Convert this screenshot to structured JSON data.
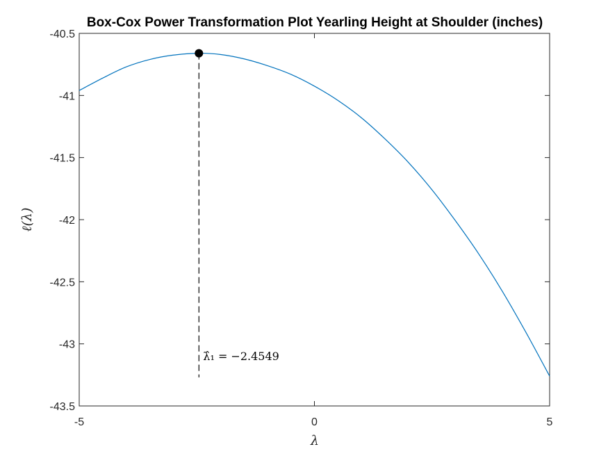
{
  "chart_data": {
    "type": "line",
    "title": "Box-Cox Power Transformation Plot Yearling Height at Shoulder (inches)",
    "xlabel": "λ",
    "ylabel": "ℓ(λ)",
    "xlim": [
      -5,
      5
    ],
    "ylim": [
      -43.5,
      -40.5
    ],
    "x_ticks": [
      -5,
      0,
      5
    ],
    "y_ticks": [
      -40.5,
      -41,
      -41.5,
      -42,
      -42.5,
      -43,
      -43.5
    ],
    "x_tick_labels": [
      "-5",
      "0",
      "5"
    ],
    "y_tick_labels": [
      "-40.5",
      "-41",
      "-41.5",
      "-42",
      "-42.5",
      "-43",
      "-43.5"
    ],
    "grid": false,
    "line_color": "#0072BD",
    "series": [
      {
        "x": [
          -5,
          -4.5,
          -4,
          -3.5,
          -3,
          -2.4549,
          -2,
          -1.5,
          -1,
          -0.5,
          0,
          0.5,
          1,
          1.5,
          2,
          2.5,
          3,
          3.5,
          4,
          4.5,
          5
        ],
        "y": [
          -40.96,
          -40.86,
          -40.77,
          -40.71,
          -40.675,
          -40.66,
          -40.67,
          -40.705,
          -40.76,
          -40.83,
          -40.925,
          -41.04,
          -41.18,
          -41.35,
          -41.54,
          -41.76,
          -42.01,
          -42.28,
          -42.58,
          -42.91,
          -43.26
        ]
      }
    ],
    "optimum": {
      "x": -2.4549,
      "y": -40.66,
      "marker_color": "#000000",
      "annotation": "λ̂₁ = −2.4549"
    }
  }
}
